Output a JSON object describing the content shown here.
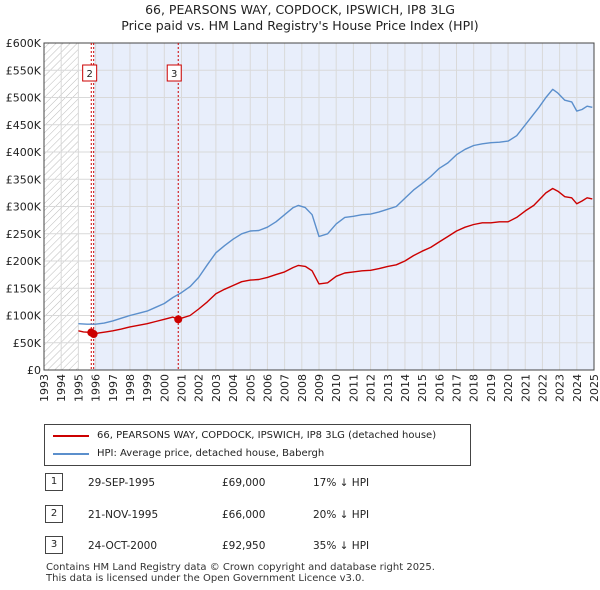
{
  "title_line1": "66, PEARSONS WAY, COPDOCK, IPSWICH, IP8 3LG",
  "title_line2": "Price paid vs. HM Land Registry's House Price Index (HPI)",
  "chart_data": {
    "type": "line",
    "xlim": [
      1993,
      2025
    ],
    "ylim": [
      0,
      600000
    ],
    "x_ticks": [
      1993,
      1994,
      1995,
      1996,
      1997,
      1998,
      1999,
      2000,
      2001,
      2002,
      2003,
      2004,
      2005,
      2006,
      2007,
      2008,
      2009,
      2010,
      2011,
      2012,
      2013,
      2014,
      2015,
      2016,
      2017,
      2018,
      2019,
      2020,
      2021,
      2022,
      2023,
      2024,
      2025
    ],
    "y_ticks": [
      {
        "value": 0,
        "label": "£0"
      },
      {
        "value": 50000,
        "label": "£50K"
      },
      {
        "value": 100000,
        "label": "£100K"
      },
      {
        "value": 150000,
        "label": "£150K"
      },
      {
        "value": 200000,
        "label": "£200K"
      },
      {
        "value": 250000,
        "label": "£250K"
      },
      {
        "value": 300000,
        "label": "£300K"
      },
      {
        "value": 350000,
        "label": "£350K"
      },
      {
        "value": 400000,
        "label": "£400K"
      },
      {
        "value": 450000,
        "label": "£450K"
      },
      {
        "value": 500000,
        "label": "£500K"
      },
      {
        "value": 550000,
        "label": "£550K"
      },
      {
        "value": 600000,
        "label": "£600K"
      }
    ],
    "series": [
      {
        "name": "66, PEARSONS WAY, COPDOCK, IPSWICH, IP8 3LG (detached house)",
        "color": "#cc0000",
        "points": [
          [
            1995.0,
            72000
          ],
          [
            1995.3,
            70000
          ],
          [
            1995.75,
            69000
          ],
          [
            1995.9,
            66000
          ],
          [
            1996.2,
            68000
          ],
          [
            1996.6,
            70000
          ],
          [
            1997.0,
            72000
          ],
          [
            1997.5,
            75000
          ],
          [
            1998.0,
            79000
          ],
          [
            1998.5,
            82000
          ],
          [
            1999.0,
            85000
          ],
          [
            1999.5,
            89000
          ],
          [
            2000.0,
            93000
          ],
          [
            2000.5,
            97000
          ],
          [
            2000.8,
            92950
          ],
          [
            2001.0,
            95000
          ],
          [
            2001.5,
            100000
          ],
          [
            2002.0,
            112000
          ],
          [
            2002.5,
            125000
          ],
          [
            2003.0,
            140000
          ],
          [
            2003.5,
            148000
          ],
          [
            2004.0,
            155000
          ],
          [
            2004.5,
            162000
          ],
          [
            2005.0,
            165000
          ],
          [
            2005.5,
            166000
          ],
          [
            2006.0,
            170000
          ],
          [
            2006.5,
            175000
          ],
          [
            2007.0,
            180000
          ],
          [
            2007.5,
            188000
          ],
          [
            2007.8,
            192000
          ],
          [
            2008.2,
            190000
          ],
          [
            2008.6,
            182000
          ],
          [
            2009.0,
            158000
          ],
          [
            2009.5,
            160000
          ],
          [
            2010.0,
            172000
          ],
          [
            2010.5,
            178000
          ],
          [
            2011.0,
            180000
          ],
          [
            2011.5,
            182000
          ],
          [
            2012.0,
            183000
          ],
          [
            2012.5,
            186000
          ],
          [
            2013.0,
            190000
          ],
          [
            2013.5,
            193000
          ],
          [
            2014.0,
            200000
          ],
          [
            2014.5,
            210000
          ],
          [
            2015.0,
            218000
          ],
          [
            2015.5,
            225000
          ],
          [
            2016.0,
            235000
          ],
          [
            2016.5,
            245000
          ],
          [
            2017.0,
            255000
          ],
          [
            2017.5,
            262000
          ],
          [
            2018.0,
            267000
          ],
          [
            2018.5,
            270000
          ],
          [
            2019.0,
            270000
          ],
          [
            2019.5,
            272000
          ],
          [
            2020.0,
            272000
          ],
          [
            2020.5,
            280000
          ],
          [
            2021.0,
            292000
          ],
          [
            2021.5,
            302000
          ],
          [
            2021.8,
            312000
          ],
          [
            2022.2,
            325000
          ],
          [
            2022.6,
            333000
          ],
          [
            2022.9,
            328000
          ],
          [
            2023.3,
            318000
          ],
          [
            2023.7,
            316000
          ],
          [
            2024.0,
            305000
          ],
          [
            2024.3,
            310000
          ],
          [
            2024.6,
            316000
          ],
          [
            2024.9,
            314000
          ]
        ]
      },
      {
        "name": "HPI: Average price, detached house, Babergh",
        "color": "#5b8fcc",
        "points": [
          [
            1995.0,
            85000
          ],
          [
            1995.5,
            84000
          ],
          [
            1996.0,
            84000
          ],
          [
            1996.5,
            86000
          ],
          [
            1997.0,
            90000
          ],
          [
            1997.5,
            95000
          ],
          [
            1998.0,
            100000
          ],
          [
            1998.5,
            104000
          ],
          [
            1999.0,
            108000
          ],
          [
            1999.5,
            115000
          ],
          [
            2000.0,
            122000
          ],
          [
            2000.5,
            133000
          ],
          [
            2001.0,
            142000
          ],
          [
            2001.5,
            153000
          ],
          [
            2002.0,
            170000
          ],
          [
            2002.5,
            193000
          ],
          [
            2003.0,
            215000
          ],
          [
            2003.5,
            228000
          ],
          [
            2004.0,
            240000
          ],
          [
            2004.5,
            250000
          ],
          [
            2005.0,
            255000
          ],
          [
            2005.5,
            256000
          ],
          [
            2006.0,
            262000
          ],
          [
            2006.5,
            272000
          ],
          [
            2007.0,
            285000
          ],
          [
            2007.5,
            298000
          ],
          [
            2007.8,
            302000
          ],
          [
            2008.2,
            298000
          ],
          [
            2008.6,
            285000
          ],
          [
            2009.0,
            245000
          ],
          [
            2009.5,
            250000
          ],
          [
            2010.0,
            268000
          ],
          [
            2010.5,
            280000
          ],
          [
            2011.0,
            282000
          ],
          [
            2011.5,
            285000
          ],
          [
            2012.0,
            286000
          ],
          [
            2012.5,
            290000
          ],
          [
            2013.0,
            295000
          ],
          [
            2013.5,
            300000
          ],
          [
            2014.0,
            315000
          ],
          [
            2014.5,
            330000
          ],
          [
            2015.0,
            342000
          ],
          [
            2015.5,
            355000
          ],
          [
            2016.0,
            370000
          ],
          [
            2016.5,
            380000
          ],
          [
            2017.0,
            395000
          ],
          [
            2017.5,
            405000
          ],
          [
            2018.0,
            412000
          ],
          [
            2018.5,
            415000
          ],
          [
            2019.0,
            417000
          ],
          [
            2019.5,
            418000
          ],
          [
            2020.0,
            420000
          ],
          [
            2020.5,
            430000
          ],
          [
            2021.0,
            450000
          ],
          [
            2021.5,
            470000
          ],
          [
            2021.8,
            482000
          ],
          [
            2022.2,
            500000
          ],
          [
            2022.6,
            515000
          ],
          [
            2022.9,
            508000
          ],
          [
            2023.3,
            495000
          ],
          [
            2023.7,
            492000
          ],
          [
            2024.0,
            475000
          ],
          [
            2024.3,
            478000
          ],
          [
            2024.6,
            484000
          ],
          [
            2024.9,
            482000
          ]
        ]
      }
    ],
    "transactions": [
      {
        "label": "1",
        "x": 1995.75,
        "price": 69000
      },
      {
        "label": "2",
        "x": 1995.89,
        "price": 66000
      },
      {
        "label": "3",
        "x": 2000.81,
        "price": 92950
      }
    ],
    "marker_labels": [
      "2",
      "3"
    ],
    "hatched_before": 1995.0,
    "shaded_between": [
      1995.89,
      2025
    ]
  },
  "legend": {
    "property": "66, PEARSONS WAY, COPDOCK, IPSWICH, IP8 3LG (detached house)",
    "hpi": "HPI: Average price, detached house, Babergh"
  },
  "transactions_table": [
    {
      "num": "1",
      "date": "29-SEP-1995",
      "price": "£69,000",
      "hpi": "17% ↓ HPI"
    },
    {
      "num": "2",
      "date": "21-NOV-1995",
      "price": "£66,000",
      "hpi": "20% ↓ HPI"
    },
    {
      "num": "3",
      "date": "24-OCT-2000",
      "price": "£92,950",
      "hpi": "35% ↓ HPI"
    }
  ],
  "footer_line1": "Contains HM Land Registry data © Crown copyright and database right 2025.",
  "footer_line2": "This data is licensed under the Open Government Licence v3.0.",
  "colors": {
    "property": "#cc0000",
    "hpi": "#5b8fcc",
    "shade": "#e8eefb",
    "grid": "#d9d9d9"
  }
}
